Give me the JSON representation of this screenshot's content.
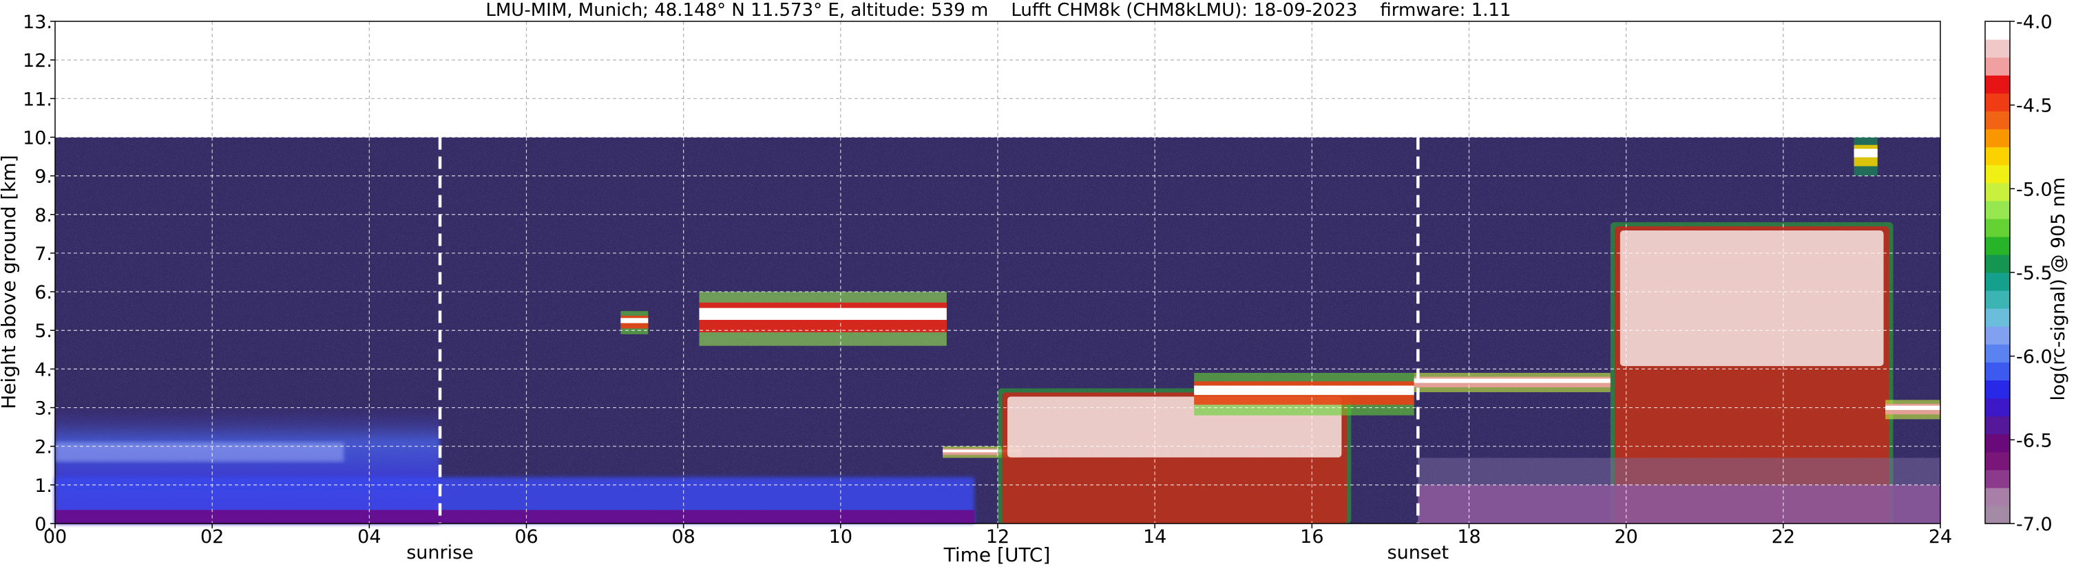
{
  "chart_data": {
    "type": "heatmap",
    "title": "LMU-MIM, Munich; 48.148° N 11.573° E, altitude: 539 m    Lufft CHM8k (CHM8kLMU): 18-09-2023    firmware: 1.11",
    "xlabel": "Time [UTC]",
    "ylabel": "Height above ground [km]",
    "xlim": [
      0,
      24
    ],
    "ylim": [
      0,
      13
    ],
    "data_top_km": 10,
    "grid": true,
    "x_ticks": [
      0,
      2,
      4,
      6,
      8,
      10,
      12,
      14,
      16,
      18,
      20,
      22,
      24
    ],
    "x_tick_labels": [
      "00",
      "02",
      "04",
      "06",
      "08",
      "10",
      "12",
      "14",
      "16",
      "18",
      "20",
      "22",
      "24"
    ],
    "y_ticks": [
      0,
      1,
      2,
      3,
      4,
      5,
      6,
      7,
      8,
      9,
      10,
      11,
      12,
      13
    ],
    "y_tick_labels": [
      "0.",
      "1.",
      "2.",
      "3.",
      "4.",
      "5.",
      "6.",
      "7.",
      "8.",
      "9.",
      "10.",
      "11.",
      "12.",
      "13."
    ],
    "markers": [
      {
        "label": "sunrise",
        "x": 4.9
      },
      {
        "label": "sunset",
        "x": 17.35
      }
    ],
    "colorbar": {
      "label": "log(rc-signal) @ 905 nm",
      "min": -7.0,
      "max": -4.0,
      "ticks": [
        -4.0,
        -4.5,
        -5.0,
        -5.5,
        -6.0,
        -6.5,
        -7.0
      ],
      "tick_labels": [
        "-4.0",
        "-4.5",
        "-5.0",
        "-5.5",
        "-6.0",
        "-6.5",
        "-7.0"
      ],
      "colors_bottom_to_top": [
        "#a58aa5",
        "#a77fa7",
        "#8c3a8c",
        "#7a167a",
        "#6a0a7a",
        "#55189a",
        "#3c18c8",
        "#2828e8",
        "#3c5af0",
        "#5a82f0",
        "#82a0f0",
        "#6abedc",
        "#3cb4b4",
        "#14a08c",
        "#149650",
        "#28b428",
        "#64d232",
        "#96e650",
        "#c8f03c",
        "#f0f014",
        "#fad200",
        "#fa9600",
        "#f06414",
        "#f03c14",
        "#e61414",
        "#f0a0a0",
        "#f0c8c8",
        "#ffffff"
      ]
    },
    "features": [
      {
        "kind": "aerosol_layer",
        "x": [
          0,
          4.9
        ],
        "y": [
          0,
          3.0
        ],
        "level": -6.1
      },
      {
        "kind": "boundary_layer",
        "x": [
          0,
          11.7
        ],
        "y": [
          0,
          1.2
        ],
        "level": -6.3
      },
      {
        "kind": "cloud_layer",
        "x": [
          7.2,
          7.55
        ],
        "y": [
          4.9,
          5.5
        ],
        "level": -4.5
      },
      {
        "kind": "cloud_layer",
        "x": [
          8.2,
          11.35
        ],
        "y": [
          4.6,
          6.0
        ],
        "level": -4.4
      },
      {
        "kind": "cloud_layer",
        "x": [
          11.3,
          12.3
        ],
        "y": [
          1.7,
          2.0
        ],
        "level": -4.3
      },
      {
        "kind": "convective_cloud",
        "x": [
          12.0,
          16.5
        ],
        "y": [
          0,
          3.5
        ],
        "level": -4.4
      },
      {
        "kind": "cloud_layer",
        "x": [
          14.5,
          17.3
        ],
        "y": [
          2.8,
          3.9
        ],
        "level": -4.5
      },
      {
        "kind": "cloud_layer",
        "x": [
          17.3,
          19.8
        ],
        "y": [
          3.4,
          3.9
        ],
        "level": -4.3
      },
      {
        "kind": "convective_cloud",
        "x": [
          19.8,
          23.4
        ],
        "y": [
          0,
          7.8
        ],
        "level": -4.6
      },
      {
        "kind": "cirrus",
        "x": [
          22.9,
          23.2
        ],
        "y": [
          9.0,
          10.0
        ],
        "level": -4.8
      },
      {
        "kind": "cloud_layer",
        "x": [
          23.3,
          24
        ],
        "y": [
          2.7,
          3.2
        ],
        "level": -4.3
      },
      {
        "kind": "nocturnal_layer",
        "x": [
          17.35,
          24
        ],
        "y": [
          0,
          1.0
        ],
        "level": -6.6
      }
    ]
  }
}
